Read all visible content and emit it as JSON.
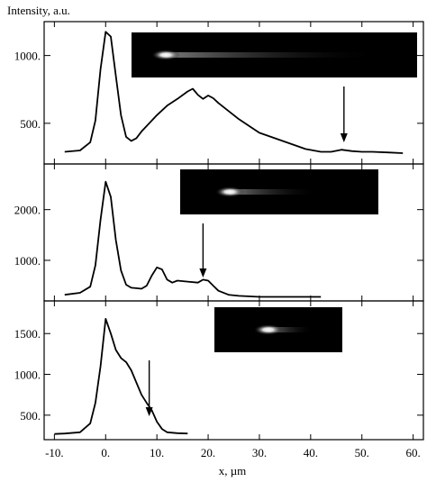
{
  "chart_data": [
    {
      "type": "line",
      "ylabel": "Intensity, a.u.",
      "xlabel": "x, µm",
      "xlim": [
        -12,
        62
      ],
      "ylim": [
        200,
        1250
      ],
      "yticks": [
        500,
        1000
      ],
      "ytick_labels": [
        "500.",
        "1000."
      ],
      "grid": false,
      "inset": "dark streak image, bright spot at left followed by a faint tail",
      "arrow_x": 46.5,
      "series": [
        {
          "x": [
            -8,
            -5,
            -3,
            -2,
            -1,
            0,
            1,
            2,
            3,
            4,
            5,
            6,
            7,
            8,
            10,
            12,
            14,
            16,
            17,
            18,
            19,
            20,
            21,
            22,
            24,
            26,
            28,
            30,
            33,
            36,
            39,
            42,
            44,
            46,
            48,
            50,
            52,
            55,
            58
          ],
          "y": [
            290,
            300,
            360,
            520,
            900,
            1175,
            1140,
            850,
            560,
            400,
            370,
            390,
            440,
            480,
            560,
            630,
            680,
            735,
            755,
            710,
            680,
            705,
            685,
            650,
            590,
            530,
            480,
            430,
            390,
            350,
            310,
            290,
            290,
            305,
            295,
            290,
            290,
            285,
            280
          ]
        }
      ]
    },
    {
      "type": "line",
      "xlim": [
        -12,
        62
      ],
      "ylim": [
        200,
        2900
      ],
      "yticks": [
        1000,
        2000
      ],
      "ytick_labels": [
        "1000.",
        "2000."
      ],
      "grid": false,
      "inset": "dark streak image, bright spot near center-left",
      "arrow_x": 19,
      "series": [
        {
          "x": [
            -8,
            -5,
            -3,
            -2,
            -1,
            0,
            1,
            2,
            3,
            4,
            5,
            6,
            7,
            8,
            9,
            10,
            11,
            12,
            13,
            14,
            16,
            18,
            19,
            20,
            21,
            22,
            24,
            26,
            30,
            35,
            40,
            42
          ],
          "y": [
            320,
            360,
            480,
            900,
            1800,
            2550,
            2250,
            1400,
            800,
            520,
            460,
            450,
            440,
            500,
            700,
            860,
            820,
            620,
            560,
            600,
            580,
            560,
            620,
            600,
            500,
            400,
            320,
            300,
            280,
            280,
            280,
            280
          ]
        }
      ]
    },
    {
      "type": "line",
      "xlim": [
        -12,
        62
      ],
      "ylim": [
        200,
        1900
      ],
      "yticks": [
        500,
        1000,
        1500
      ],
      "ytick_labels": [
        "500.",
        "1000.",
        "1500."
      ],
      "xticks": [
        -10,
        0,
        10,
        20,
        30,
        40,
        50,
        60
      ],
      "xtick_labels": [
        "-10.",
        "0.",
        "10.",
        "20.",
        "30.",
        "40.",
        "50.",
        "60."
      ],
      "grid": false,
      "inset": "dark streak image, bright spot with short tail",
      "arrow_x": 8.5,
      "series": [
        {
          "x": [
            -10,
            -8,
            -5,
            -3,
            -2,
            -1,
            0,
            1,
            2,
            3,
            4,
            5,
            6,
            7,
            8,
            9,
            10,
            11,
            12,
            14,
            16
          ],
          "y": [
            270,
            275,
            290,
            400,
            650,
            1100,
            1680,
            1500,
            1300,
            1200,
            1150,
            1050,
            900,
            750,
            650,
            560,
            420,
            330,
            290,
            280,
            275
          ]
        }
      ]
    }
  ]
}
